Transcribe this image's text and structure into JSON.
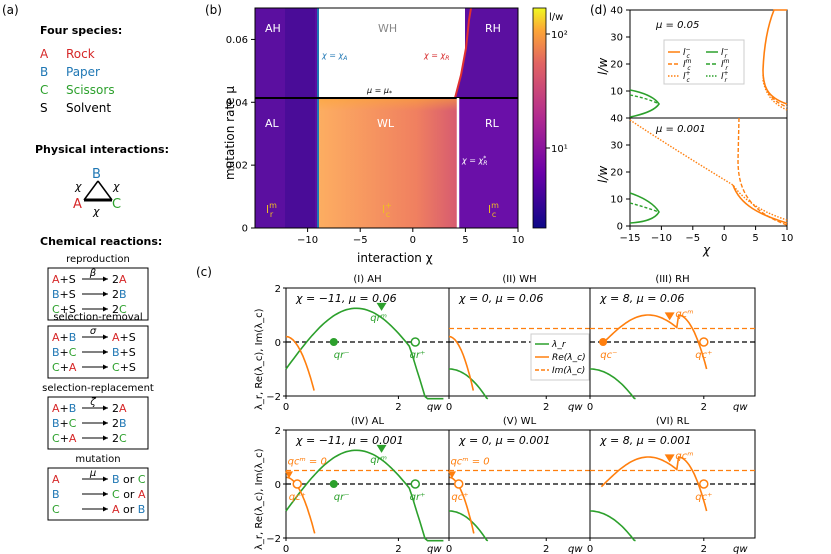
{
  "panel_labels": {
    "a": "(a)",
    "b": "(b)",
    "c": "(c)",
    "d": "(d)"
  },
  "panel_a": {
    "species_title": "Four species:",
    "species": [
      {
        "letter": "A",
        "name": "Rock",
        "color": "#d62728"
      },
      {
        "letter": "B",
        "name": "Paper",
        "color": "#1f77b4"
      },
      {
        "letter": "C",
        "name": "Scissors",
        "color": "#2ca02c"
      },
      {
        "letter": "S",
        "name": "Solvent",
        "color": "#000000"
      }
    ],
    "physical_title": "Physical interactions:",
    "triangle": {
      "top": "B",
      "left": "A",
      "right": "C",
      "edge_label": "χ"
    },
    "chemical_title": "Chemical reactions:",
    "reactions": [
      {
        "title": "reproduction",
        "rate": "β",
        "lines": [
          [
            "A+S",
            "2A"
          ],
          [
            "B+S",
            "2B"
          ],
          [
            "C+S",
            "2C"
          ]
        ]
      },
      {
        "title": "selection-removal",
        "rate": "σ",
        "lines": [
          [
            "A+B",
            "A+S"
          ],
          [
            "B+C",
            "B+S"
          ],
          [
            "C+A",
            "C+S"
          ]
        ]
      },
      {
        "title": "selection-replacement",
        "rate": "ζ",
        "lines": [
          [
            "A+B",
            "2A"
          ],
          [
            "B+C",
            "2B"
          ],
          [
            "C+A",
            "2C"
          ]
        ]
      },
      {
        "title": "mutation",
        "rate": "μ",
        "lines": [
          [
            "A",
            "B or C"
          ],
          [
            "B",
            "C or A"
          ],
          [
            "C",
            "A or B"
          ]
        ]
      }
    ]
  },
  "chart_data": [
    {
      "id": "b",
      "type": "heatmap",
      "xlabel": "interaction χ",
      "ylabel": "mutation rate μ",
      "xlim": [
        -15,
        10
      ],
      "ylim": [
        0,
        0.07
      ],
      "xticks": [
        -10,
        -5,
        0,
        5,
        10
      ],
      "yticks": [
        0,
        0.02,
        0.04,
        0.06
      ],
      "colorbar_label": "l/w",
      "colorbar_ticks": [
        "10¹",
        "10²"
      ],
      "regions": [
        "AH",
        "WH",
        "RH",
        "AL",
        "WL",
        "RL"
      ],
      "boundaries": [
        {
          "label": "χ = χ_A",
          "value": -10,
          "color": "#1f77b4"
        },
        {
          "label": "χ = χ_R",
          "color": "#d62728"
        },
        {
          "label": "μ = μ*",
          "value": 0.042,
          "color": "#000000"
        },
        {
          "label": "χ = χ_R*",
          "value": 4,
          "color": "#ffffff"
        }
      ],
      "region_modes": [
        "l_r^m",
        "l_c^+",
        "l_c^m"
      ]
    },
    {
      "id": "c",
      "type": "line",
      "ylabel": "λ_r, Re(λ_c), Im(λ_c)",
      "xlabel": "qw",
      "xlim": [
        0,
        2.9
      ],
      "ylim": [
        -2,
        2
      ],
      "legend": [
        "λ_r",
        "Re(λ_c)",
        "Im(λ_c)"
      ],
      "panels": [
        {
          "title": "(I) AH",
          "params": "χ = −11, μ = 0.06"
        },
        {
          "title": "(II) WH",
          "params": "χ = 0, μ = 0.06"
        },
        {
          "title": "(III) RH",
          "params": "χ = 8, μ = 0.06"
        },
        {
          "title": "(IV) AL",
          "params": "χ = −11, μ = 0.001"
        },
        {
          "title": "(V) WL",
          "params": "χ = 0, μ = 0.001"
        },
        {
          "title": "(VI) RL",
          "params": "χ = 8, μ = 0.001"
        }
      ]
    },
    {
      "id": "d",
      "type": "line",
      "xlabel": "χ",
      "ylabel": "l/w",
      "xlim": [
        -15,
        10
      ],
      "ylim": [
        0,
        40
      ],
      "xticks": [
        -15,
        -10,
        -5,
        0,
        5,
        10
      ],
      "yticks": [
        0,
        10,
        20,
        30,
        40
      ],
      "panels": [
        {
          "annotation": "μ = 0.05"
        },
        {
          "annotation": "μ = 0.001"
        }
      ],
      "legend": [
        "l_c^−",
        "l_r^−",
        "l_c^m",
        "l_r^m",
        "l_c^+",
        "l_r^+"
      ]
    }
  ]
}
